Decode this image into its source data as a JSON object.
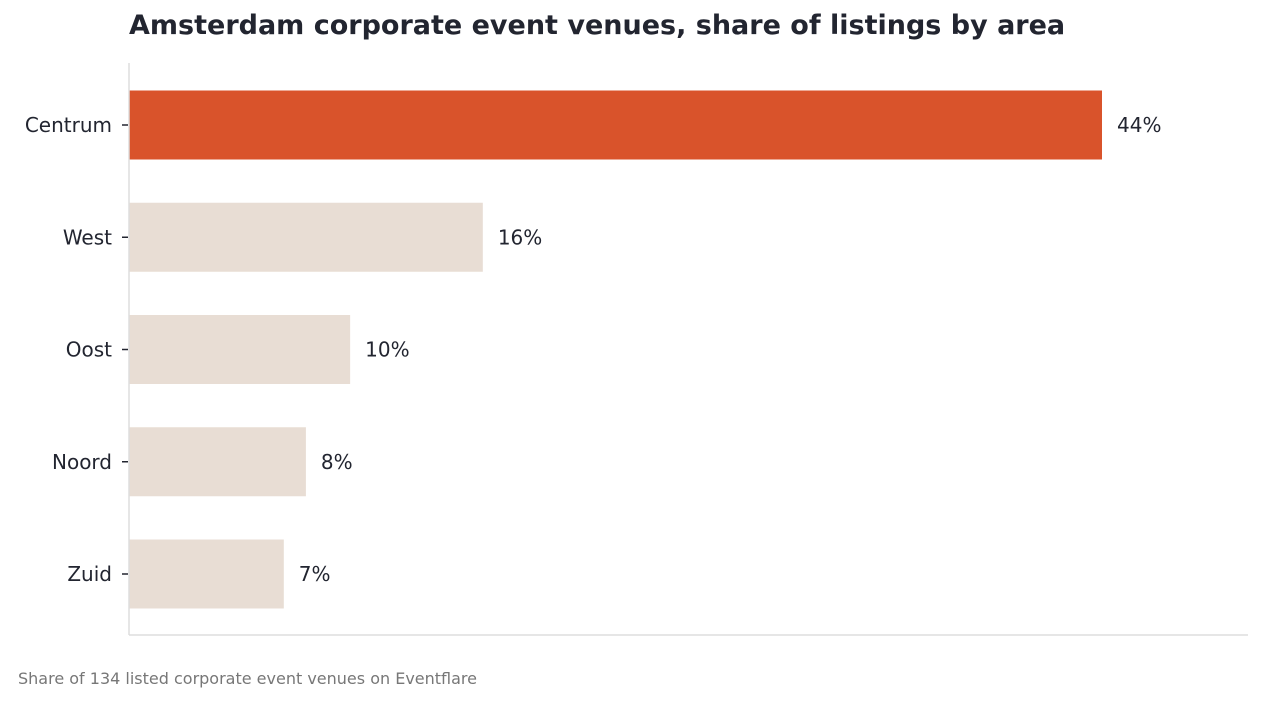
{
  "chart_data": {
    "type": "bar",
    "orientation": "horizontal",
    "title": "Amsterdam corporate event venues, share of listings by area",
    "footnote": "Share of 134 listed corporate event venues on Eventflare",
    "xlabel": "",
    "ylabel": "",
    "categories": [
      "Centrum",
      "West",
      "Oost",
      "Noord",
      "Zuid"
    ],
    "values": [
      44,
      16,
      10,
      8,
      7
    ],
    "value_labels": [
      "44%",
      "16%",
      "10%",
      "8%",
      "7%"
    ],
    "unit": "%",
    "highlight_category": "Centrum",
    "colors": {
      "highlight": "#D9532B",
      "default": "#E8DDD4",
      "text": "#222530",
      "axis": "#DDDDDD",
      "footnote": "#777777"
    },
    "grid": false,
    "legend": "none",
    "x_axis_visible": false
  }
}
